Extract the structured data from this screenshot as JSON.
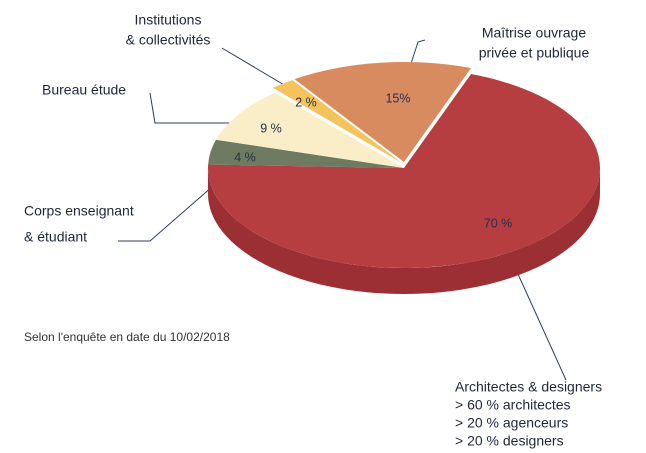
{
  "chart_data": {
    "type": "pie3d",
    "categories": [
      [
        "Architectes & designers"
      ],
      [
        "Corps enseignant",
        "& étudiant"
      ],
      [
        "Bureau étude"
      ],
      [
        "Institutions",
        "& collectivités"
      ],
      [
        "Maîtrise ouvrage",
        "privée et publique"
      ]
    ],
    "category_details": [
      [
        "> 60 % architectes",
        "> 20 % agenceurs",
        "> 20 % designers"
      ],
      [],
      [],
      [],
      []
    ],
    "values": [
      70,
      4,
      9,
      2,
      15
    ],
    "value_labels": [
      "70 %",
      "4 %",
      "9 %",
      "2 %",
      "15%"
    ],
    "colors": [
      "#b63e41",
      "#6e7b60",
      "#f9eec8",
      "#f4c35c",
      "#d98b60"
    ],
    "side_colors": [
      "#9c2f33",
      "#56624b",
      "#ddd1a8",
      "#d9a843",
      "#bd7249"
    ],
    "note": "Selon l'enquête  en date du 10/02/2018"
  }
}
